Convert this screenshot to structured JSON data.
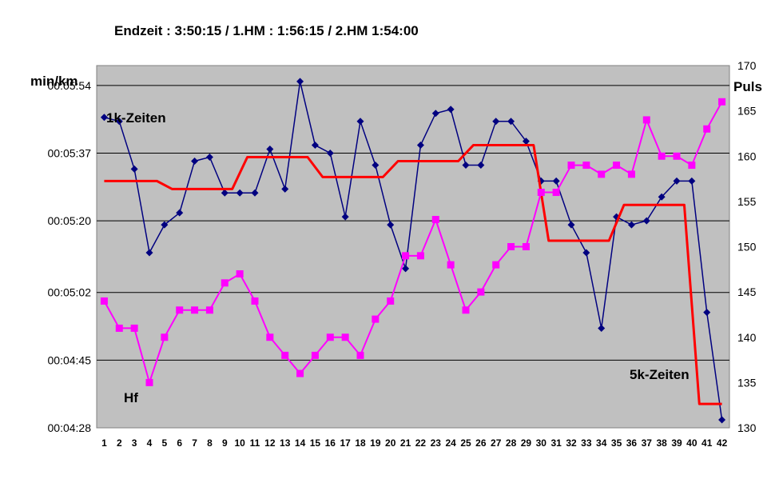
{
  "chart_data": {
    "type": "line",
    "title": "Endzeit : 3:50:15  / 1.HM : 1:56:15  / 2.HM  1:54:00",
    "ylabel_left": "min/km",
    "ylabel_right": "Puls",
    "x": [
      1,
      2,
      3,
      4,
      5,
      6,
      7,
      8,
      9,
      10,
      11,
      12,
      13,
      14,
      15,
      16,
      17,
      18,
      19,
      20,
      21,
      22,
      23,
      24,
      25,
      26,
      27,
      28,
      29,
      30,
      31,
      32,
      33,
      34,
      35,
      36,
      37,
      38,
      39,
      40,
      41,
      42
    ],
    "left_axis": {
      "unit": "seconds per km",
      "tick_labels": [
        "00:05:54",
        "00:05:37",
        "00:05:20",
        "00:05:02",
        "00:04:45",
        "00:04:28"
      ],
      "tick_values": [
        354,
        337,
        320,
        302,
        285,
        268
      ],
      "range": [
        268,
        359
      ]
    },
    "right_axis": {
      "tick_labels": [
        "170",
        "165",
        "160",
        "155",
        "150",
        "145",
        "140",
        "135",
        "130"
      ],
      "range": [
        130,
        170
      ]
    },
    "grid": "horizontal",
    "series": [
      {
        "name": "1k-Zeiten",
        "axis": "left",
        "color": "#000080",
        "marker": "diamond",
        "values": [
          346,
          345,
          333,
          312,
          319,
          322,
          335,
          336,
          327,
          327,
          327,
          338,
          328,
          355,
          339,
          337,
          321,
          345,
          334,
          319,
          308,
          339,
          347,
          348,
          334,
          334,
          345,
          345,
          340,
          330,
          330,
          319,
          312,
          293,
          321,
          319,
          320,
          326,
          330,
          330,
          297,
          270
        ]
      },
      {
        "name": "5k-Zeiten",
        "axis": "left",
        "color": "#ff0000",
        "marker": "none",
        "values": [
          330,
          330,
          330,
          330,
          330,
          328,
          328,
          328,
          328,
          328,
          336,
          336,
          336,
          336,
          336,
          331,
          331,
          331,
          331,
          331,
          335,
          335,
          335,
          335,
          335,
          339,
          339,
          339,
          339,
          339,
          315,
          315,
          315,
          315,
          315,
          324,
          324,
          324,
          324,
          324,
          274,
          274
        ]
      },
      {
        "name": "Hf",
        "axis": "right",
        "color": "#ff00ff",
        "marker": "square",
        "values": [
          144,
          141,
          141,
          135,
          140,
          143,
          143,
          143,
          146,
          147,
          144,
          140,
          138,
          136,
          138,
          140,
          140,
          138,
          142,
          144,
          149,
          149,
          153,
          148,
          143,
          145,
          148,
          150,
          150,
          156,
          156,
          159,
          159,
          158,
          159,
          158,
          164,
          160,
          160,
          159,
          163,
          166
        ]
      }
    ],
    "legend": "inline labels"
  }
}
